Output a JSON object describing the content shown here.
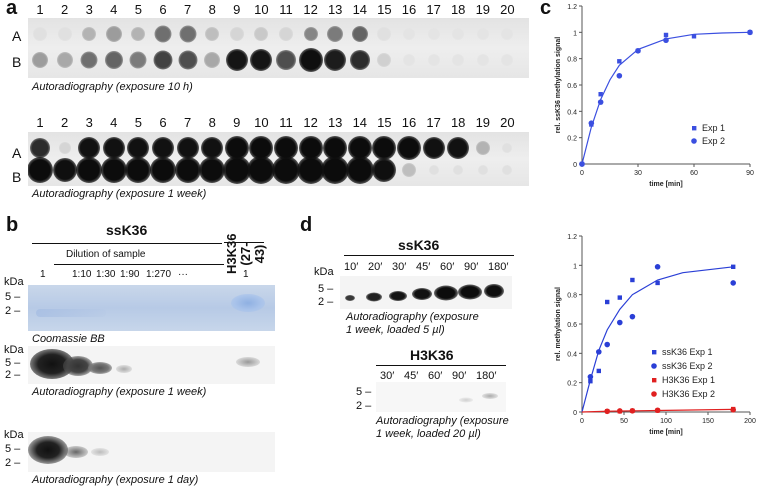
{
  "panel_labels": {
    "a": "a",
    "b": "b",
    "c": "c",
    "d": "d"
  },
  "panel_a": {
    "lane_numbers": [
      "1",
      "2",
      "3",
      "4",
      "5",
      "6",
      "7",
      "8",
      "9",
      "10",
      "11",
      "12",
      "13",
      "14",
      "15",
      "16",
      "17",
      "18",
      "19",
      "20"
    ],
    "row_labels": [
      "A",
      "B"
    ],
    "blot1_caption": "Autoradiography (exposure 10 h)",
    "blot2_caption": "Autoradiography (exposure 1 week)"
  },
  "panel_b": {
    "title_sample": "ssK36",
    "title_control": "H3K36 (27-43)",
    "dilution_header": "Dilution of sample",
    "dilutions": [
      "1",
      "1:10",
      "1:30",
      "1:90",
      "1:270",
      "···"
    ],
    "control_dilution": "1",
    "kda_label": "kDa",
    "mw_marks": [
      "5 –",
      "2 –"
    ],
    "coomassie_caption": "Coomassie BB",
    "auto_week_caption": "Autoradiography (exposure 1 week)",
    "auto_day_caption": "Autoradiography (exposure 1 day)"
  },
  "panel_d_blots": {
    "ssk36_title": "ssK36",
    "ssk36_times": [
      "10′",
      "20′",
      "30′",
      "45′",
      "60′",
      "90′",
      "180′"
    ],
    "ssk36_caption_line1": "Autoradiography (exposure",
    "ssk36_caption_line2": "1 week, loaded 5 µl)",
    "h3k36_title": "H3K36",
    "h3k36_times": [
      "30′",
      "45′",
      "60′",
      "90′",
      "180′"
    ],
    "h3k36_caption_line1": "Autoradiography (exposure",
    "h3k36_caption_line2": "1 week, loaded 20 µl)",
    "kda_label": "kDa",
    "mw_marks": [
      "5 –",
      "2 –"
    ]
  },
  "chart_data": [
    {
      "type": "scatter",
      "panel": "c",
      "title": "",
      "xlabel": "time [min]",
      "ylabel": "rel. ssK36 methylation signal",
      "xlim": [
        0,
        90
      ],
      "ylim": [
        0,
        1.2
      ],
      "xticks": [
        0,
        30,
        60,
        90
      ],
      "yticks": [
        0,
        0.2,
        0.4,
        0.6,
        0.8,
        1,
        1.2
      ],
      "series": [
        {
          "name": "Exp 1",
          "marker": "square",
          "color": "#3b4fe0",
          "x": [
            0,
            5,
            10,
            20,
            30,
            45,
            60,
            90
          ],
          "y": [
            0,
            0.3,
            0.53,
            0.78,
            0.86,
            0.98,
            0.97,
            1.0
          ]
        },
        {
          "name": "Exp 2",
          "marker": "circle",
          "color": "#3b4fe0",
          "x": [
            0,
            5,
            10,
            20,
            30,
            45,
            90
          ],
          "y": [
            0,
            0.31,
            0.47,
            0.67,
            0.86,
            0.94,
            1.0
          ]
        }
      ],
      "fit": {
        "x": [
          0,
          5,
          10,
          15,
          20,
          30,
          45,
          60,
          75,
          90
        ],
        "y": [
          0,
          0.28,
          0.49,
          0.64,
          0.75,
          0.87,
          0.95,
          0.985,
          0.995,
          1.0
        ]
      }
    },
    {
      "type": "scatter",
      "panel": "d",
      "title": "",
      "xlabel": "time [min]",
      "ylabel": "rel. methylation signal",
      "xlim": [
        0,
        200
      ],
      "ylim": [
        0,
        1.2
      ],
      "xticks": [
        0,
        50,
        100,
        150,
        200
      ],
      "yticks": [
        0,
        0.2,
        0.4,
        0.6,
        0.8,
        1,
        1.2
      ],
      "series": [
        {
          "name": "ssK36 Exp 1",
          "marker": "square",
          "color": "#2a3fd6",
          "x": [
            10,
            20,
            30,
            45,
            60,
            90,
            180
          ],
          "y": [
            0.21,
            0.28,
            0.75,
            0.78,
            0.9,
            0.88,
            0.99
          ]
        },
        {
          "name": "ssK36 Exp 2",
          "marker": "circle",
          "color": "#2a3fd6",
          "x": [
            10,
            20,
            30,
            45,
            60,
            90,
            180
          ],
          "y": [
            0.24,
            0.41,
            0.46,
            0.61,
            0.65,
            0.99,
            0.88
          ]
        },
        {
          "name": "H3K36 Exp 1",
          "marker": "square",
          "color": "#e02020",
          "x": [
            30,
            45,
            60,
            90,
            180
          ],
          "y": [
            0.005,
            0.005,
            0.008,
            0.01,
            0.02
          ]
        },
        {
          "name": "H3K36 Exp 2",
          "marker": "circle",
          "color": "#e02020",
          "x": [
            30,
            45,
            60,
            90,
            180
          ],
          "y": [
            0.005,
            0.007,
            0.008,
            0.012,
            0.015
          ]
        }
      ],
      "fits": [
        {
          "color": "#2a3fd6",
          "x": [
            0,
            10,
            20,
            30,
            45,
            60,
            90,
            120,
            180
          ],
          "y": [
            0,
            0.22,
            0.42,
            0.56,
            0.7,
            0.8,
            0.9,
            0.95,
            0.99
          ]
        },
        {
          "color": "#e02020",
          "x": [
            0,
            30,
            60,
            90,
            180
          ],
          "y": [
            0,
            0.005,
            0.008,
            0.01,
            0.018
          ]
        }
      ]
    }
  ]
}
